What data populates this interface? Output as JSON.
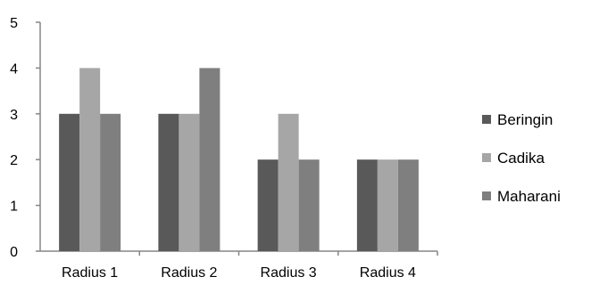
{
  "chart_data": {
    "type": "bar",
    "categories": [
      "Radius 1",
      "Radius 2",
      "Radius 3",
      "Radius 4"
    ],
    "series": [
      {
        "name": "Beringin",
        "values": [
          3,
          3,
          2,
          2
        ],
        "color": "#595959"
      },
      {
        "name": "Cadika",
        "values": [
          4,
          3,
          3,
          2
        ],
        "color": "#a6a6a6"
      },
      {
        "name": "Maharani",
        "values": [
          3,
          4,
          2,
          2
        ],
        "color": "#7f7f7f"
      }
    ],
    "ylim": [
      0,
      5
    ],
    "yticks": [
      "0",
      "1",
      "2",
      "3",
      "4",
      "5"
    ],
    "grid": false,
    "legend_position": "right"
  }
}
